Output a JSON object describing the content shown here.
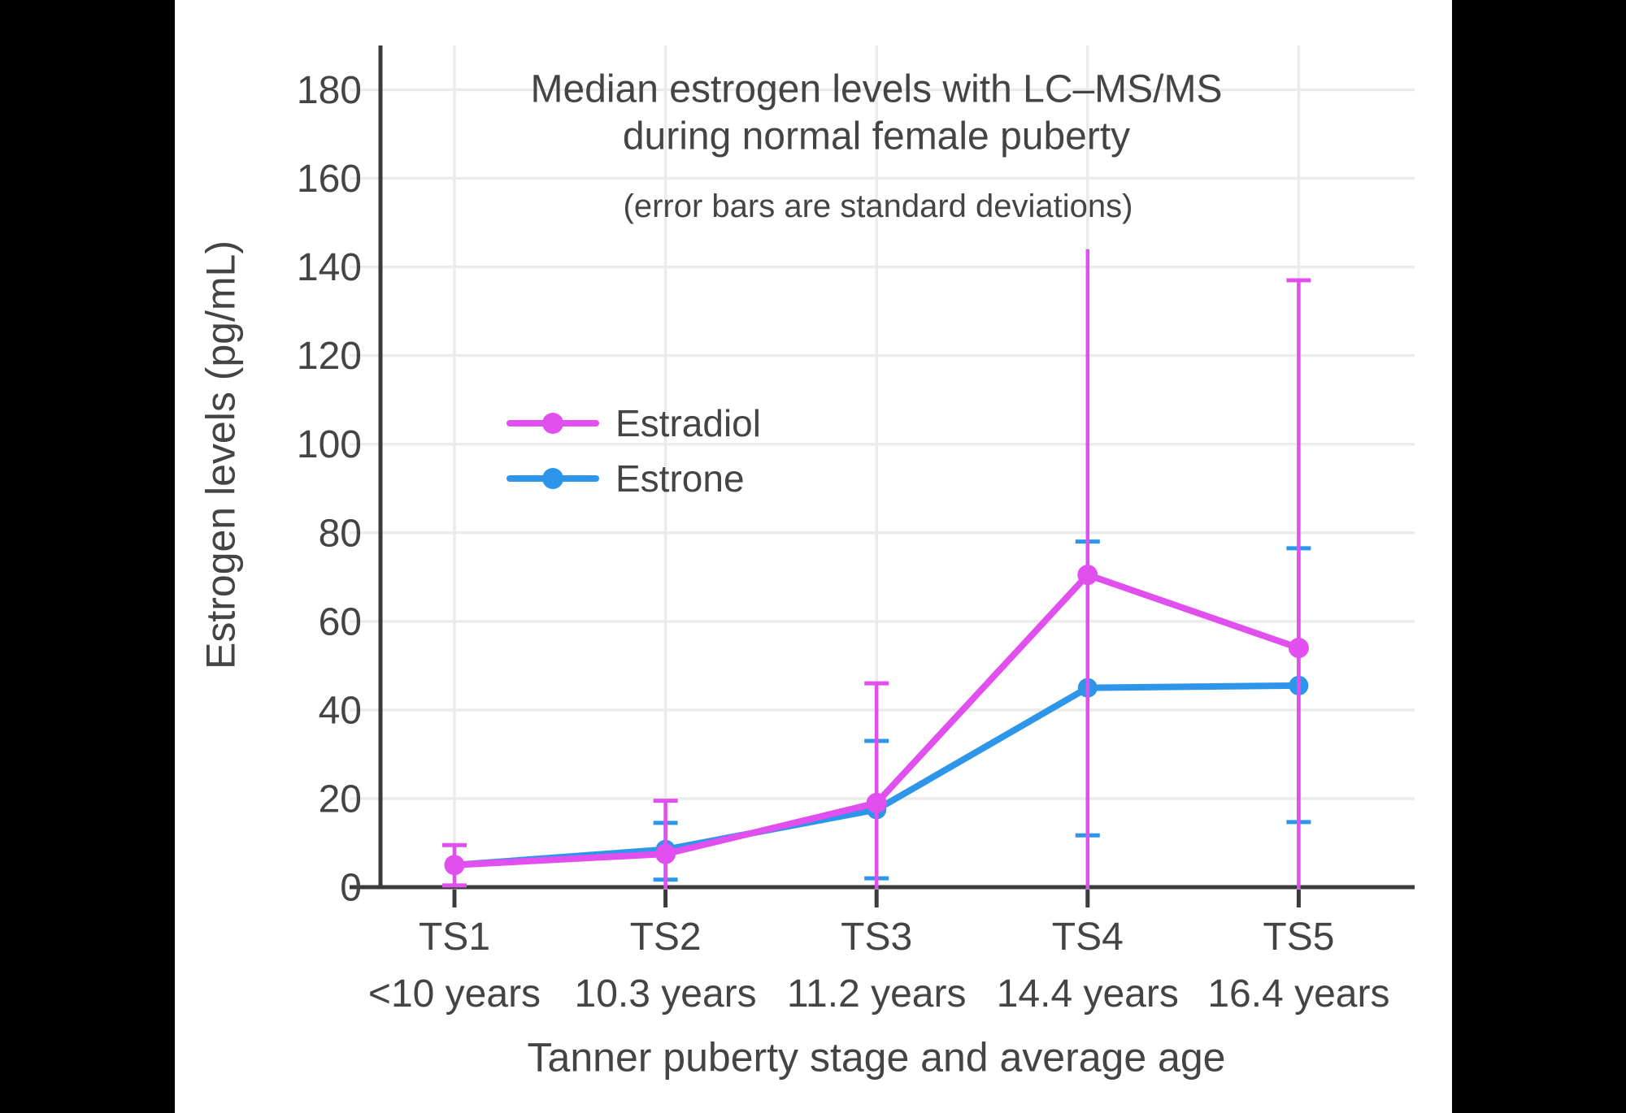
{
  "window": {
    "background": "#000000",
    "content_background": "#ffffff"
  },
  "colors": {
    "text": "#444444",
    "grid": "#EBEBEB",
    "axis": "#3B3B3B",
    "estradiol": "#E14FEF",
    "estrone": "#2E96EA"
  },
  "chart_data": {
    "type": "line",
    "title_lines": [
      "Median estrogen levels with LC–MS/MS",
      "during normal female puberty"
    ],
    "subtitle": "(error bars are standard deviations)",
    "xlabel": "Tanner puberty stage and average age",
    "ylabel": "Estrogen levels (pg/mL)",
    "ylim": [
      0,
      190
    ],
    "yticks": [
      0,
      20,
      40,
      60,
      80,
      100,
      120,
      140,
      160,
      180
    ],
    "grid": true,
    "legend_position": "inside-left",
    "categories": [
      {
        "stage": "TS1",
        "age": "<10 years"
      },
      {
        "stage": "TS2",
        "age": "10.3 years"
      },
      {
        "stage": "TS3",
        "age": "11.2 years"
      },
      {
        "stage": "TS4",
        "age": "14.4 years"
      },
      {
        "stage": "TS5",
        "age": "16.4 years"
      }
    ],
    "series": [
      {
        "name": "Estradiol",
        "color": "#E14FEF",
        "values": [
          5,
          7.5,
          19,
          70.5,
          54
        ],
        "error_top": [
          9.5,
          19.5,
          46,
          144,
          137
        ],
        "error_top_cap": [
          true,
          true,
          true,
          false,
          true
        ],
        "error_bottom": [
          0.4,
          null,
          null,
          null,
          null
        ]
      },
      {
        "name": "Estrone",
        "color": "#2E96EA",
        "values": [
          5,
          8.5,
          17.5,
          45,
          45.5
        ],
        "error_top": [
          null,
          14.5,
          33,
          78,
          76.5
        ],
        "error_top_cap": [
          null,
          true,
          true,
          true,
          true
        ],
        "error_bottom": [
          null,
          1.7,
          2,
          11.7,
          14.7
        ]
      }
    ]
  }
}
